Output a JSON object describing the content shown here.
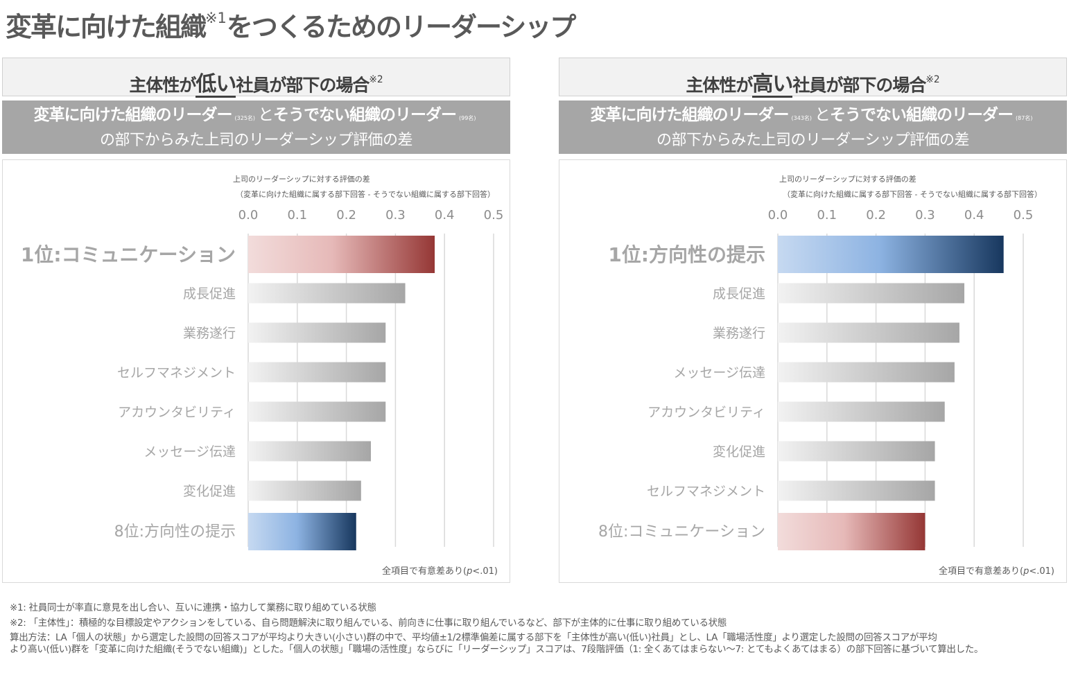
{
  "title": {
    "main_a": "変革に向けた組織",
    "note_ref": "※1",
    "main_b": "をつくるためのリーダーシップ"
  },
  "colors": {
    "red_dark": "#953735",
    "red_light": "#f2dcdb",
    "blue_dark": "#17375e",
    "blue_mid": "#8db3e2",
    "blue_light": "#c6d9f1",
    "gray_bar_light": "#f2f2f2",
    "gray_bar_dark": "#a6a6a6",
    "band_bg": "#a6a6a6",
    "head_bg": "#f2f2f2"
  },
  "panels": [
    {
      "heading_pre": "主体性が",
      "heading_emph": "低い",
      "heading_post": "社員が部下の場合",
      "heading_note": "※2",
      "band_line1_a": "変革に向けた組織のリーダー",
      "band_n1": "(325名)",
      "band_to": "と",
      "band_line1_b": "そうでない組織のリーダー",
      "band_n2": "(99名)",
      "band_line2": "の部下からみた上司のリーダーシップ評価の差",
      "axis_title_1": "上司のリーダーシップに対する評価の差",
      "axis_title_2": "（変革に向けた組織に属する部下回答 - そうでない組織に属する部下回答）",
      "significance": "全項目で有意差あり(",
      "significance_p": "p",
      "significance_tail": "<.01)"
    },
    {
      "heading_pre": "主体性が",
      "heading_emph": "高い",
      "heading_post": "社員が部下の場合",
      "heading_note": "※2",
      "band_line1_a": "変革に向けた組織のリーダー",
      "band_n1": "(343名)",
      "band_to": "と",
      "band_line1_b": "そうでない組織のリーダー",
      "band_n2": "(87名)",
      "band_line2": "の部下からみた上司のリーダーシップ評価の差",
      "axis_title_1": "上司のリーダーシップに対する評価の差",
      "axis_title_2": "（変革に向けた組織に属する部下回答 - そうでない組織に属する部下回答）",
      "significance": "全項目で有意差あり(",
      "significance_p": "p",
      "significance_tail": "<.01)"
    }
  ],
  "chart_data": [
    {
      "type": "bar",
      "orientation": "horizontal",
      "title": "主体性が低い社員が部下の場合",
      "xlabel": "上司のリーダーシップに対する評価の差（変革に向けた組織に属する部下回答 - そうでない組織に属する部下回答）",
      "ylabel": "",
      "xlim": [
        0,
        0.5
      ],
      "xticks": [
        "0.0",
        "0.1",
        "0.2",
        "0.3",
        "0.4",
        "0.5"
      ],
      "grid": true,
      "categories": [
        "1位:コミュニケーション",
        "成長促進",
        "業務遂行",
        "セルフマネジメント",
        "アカウンタビリティ",
        "メッセージ伝達",
        "変化促進",
        "8位:方向性の提示"
      ],
      "values": [
        0.38,
        0.32,
        0.28,
        0.28,
        0.28,
        0.25,
        0.23,
        0.22
      ],
      "highlight": [
        "red",
        "gray",
        "gray",
        "gray",
        "gray",
        "gray",
        "gray",
        "blue"
      ],
      "annotation": "全項目で有意差あり(p<.01)"
    },
    {
      "type": "bar",
      "orientation": "horizontal",
      "title": "主体性が高い社員が部下の場合",
      "xlabel": "上司のリーダーシップに対する評価の差（変革に向けた組織に属する部下回答 - そうでない組織に属する部下回答）",
      "ylabel": "",
      "xlim": [
        0,
        0.5
      ],
      "xticks": [
        "0.0",
        "0.1",
        "0.2",
        "0.3",
        "0.4",
        "0.5"
      ],
      "grid": true,
      "categories": [
        "1位:方向性の提示",
        "成長促進",
        "業務遂行",
        "メッセージ伝達",
        "アカウンタビリティ",
        "変化促進",
        "セルフマネジメント",
        "8位:コミュニケーション"
      ],
      "values": [
        0.46,
        0.38,
        0.37,
        0.36,
        0.34,
        0.32,
        0.32,
        0.3
      ],
      "highlight": [
        "blue",
        "gray",
        "gray",
        "gray",
        "gray",
        "gray",
        "gray",
        "red"
      ],
      "annotation": "全項目で有意差あり(p<.01)"
    }
  ],
  "notes": {
    "n1": "※1: 社員同士が率直に意見を出し合い、互いに連携・協力して業務に取り組めている状態",
    "n2": "※2: 「主体性」：積極的な目標設定やアクションをしている、自ら問題解決に取り組んでいる、前向きに仕事に取り組んでいるなど、部下が主体的に仕事に取り組めている状態",
    "calc1": "算出方法：LA「個人の状態」から選定した設問の回答スコアが平均より大きい(小さい)群の中で、平均値±1/2標準偏差に属する部下を「主体性が高い(低い)社員」とし、LA「職場活性度」より選定した設問の回答スコアが平均",
    "calc2": "より高い(低い)群を「変革に向けた組織(そうでない組織)」とした。「個人の状態」「職場の活性度」ならびに「リーダーシップ」スコアは、7段階評価（1: 全くあてはまらない～7: とてもよくあてはまる）の部下回答に基づいて算出した。"
  }
}
